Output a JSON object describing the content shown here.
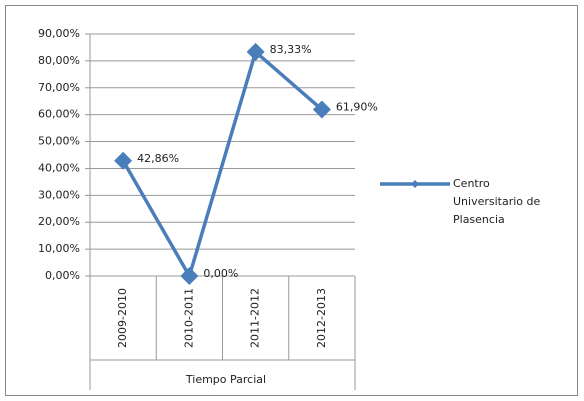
{
  "chart_data": {
    "type": "line",
    "categories": [
      "2009-2010",
      "2010-2011",
      "2011-2012",
      "2012-2013"
    ],
    "category_group": "Tiempo Parcial",
    "series": [
      {
        "name": "Centro Universitario de Plasencia",
        "color": "#4a7ebb",
        "values": [
          42.86,
          0,
          83.33,
          61.9
        ],
        "value_labels": [
          "42,86%",
          "0,00%",
          "83,33%",
          "61,90%"
        ]
      }
    ],
    "ylim": [
      0,
      90
    ],
    "yticks": [
      {
        "value": 0,
        "label": "0,00%"
      },
      {
        "value": 10,
        "label": "10,00%"
      },
      {
        "value": 20,
        "label": "20,00%"
      },
      {
        "value": 30,
        "label": "30,00%"
      },
      {
        "value": 40,
        "label": "40,00%"
      },
      {
        "value": 50,
        "label": "50,00%"
      },
      {
        "value": 60,
        "label": "60,00%"
      },
      {
        "value": 70,
        "label": "70,00%"
      },
      {
        "value": 80,
        "label": "80,00%"
      },
      {
        "value": 90,
        "label": "90,00%"
      }
    ],
    "grid": true,
    "legend": "right"
  }
}
